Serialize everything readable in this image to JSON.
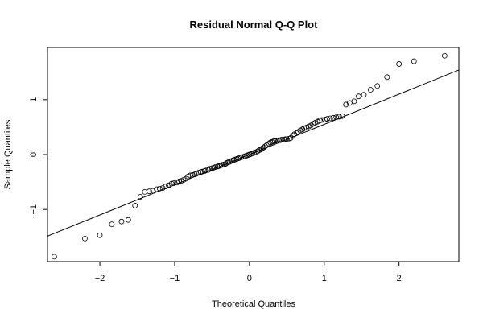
{
  "chart_data": {
    "type": "scatter",
    "title": "Residual Normal Q-Q Plot",
    "xlabel": "Theoretical Quantiles",
    "ylabel": "Sample Quantiles",
    "xlim": [
      -2.7,
      2.8
    ],
    "ylim": [
      -1.95,
      1.95
    ],
    "x_ticks": [
      -2,
      -1,
      0,
      1,
      2
    ],
    "x_tick_labels": [
      "−2",
      "−1",
      "0",
      "1",
      "2"
    ],
    "y_ticks": [
      -1,
      0,
      1
    ],
    "y_tick_labels": [
      "−1",
      "0",
      "1"
    ],
    "grid": false,
    "reference_line": {
      "intercept": 0.0,
      "slope": 0.55
    },
    "series": [
      {
        "points": [
          [
            -2.61,
            -1.86
          ],
          [
            -2.2,
            -1.53
          ],
          [
            -2.0,
            -1.47
          ],
          [
            -1.84,
            -1.27
          ],
          [
            -1.71,
            -1.22
          ],
          [
            -1.62,
            -1.19
          ],
          [
            -1.53,
            -0.93
          ],
          [
            -1.46,
            -0.77
          ],
          [
            -1.4,
            -0.68
          ],
          [
            -1.34,
            -0.67
          ],
          [
            -1.29,
            -0.66
          ],
          [
            -1.24,
            -0.63
          ],
          [
            -1.2,
            -0.62
          ],
          [
            -1.16,
            -0.61
          ],
          [
            -1.12,
            -0.58
          ],
          [
            -1.08,
            -0.56
          ],
          [
            -1.04,
            -0.53
          ],
          [
            -1.01,
            -0.52
          ],
          [
            -0.97,
            -0.51
          ],
          [
            -0.94,
            -0.49
          ],
          [
            -0.91,
            -0.48
          ],
          [
            -0.88,
            -0.46
          ],
          [
            -0.85,
            -0.44
          ],
          [
            -0.82,
            -0.4
          ],
          [
            -0.79,
            -0.38
          ],
          [
            -0.76,
            -0.37
          ],
          [
            -0.73,
            -0.36
          ],
          [
            -0.71,
            -0.35
          ],
          [
            -0.68,
            -0.33
          ],
          [
            -0.65,
            -0.32
          ],
          [
            -0.63,
            -0.31
          ],
          [
            -0.6,
            -0.3
          ],
          [
            -0.58,
            -0.29
          ],
          [
            -0.55,
            -0.28
          ],
          [
            -0.53,
            -0.26
          ],
          [
            -0.5,
            -0.25
          ],
          [
            -0.48,
            -0.24
          ],
          [
            -0.46,
            -0.23
          ],
          [
            -0.43,
            -0.22
          ],
          [
            -0.41,
            -0.21
          ],
          [
            -0.39,
            -0.2
          ],
          [
            -0.37,
            -0.19
          ],
          [
            -0.34,
            -0.18
          ],
          [
            -0.32,
            -0.17
          ],
          [
            -0.3,
            -0.15
          ],
          [
            -0.28,
            -0.14
          ],
          [
            -0.26,
            -0.13
          ],
          [
            -0.23,
            -0.11
          ],
          [
            -0.21,
            -0.1
          ],
          [
            -0.19,
            -0.09
          ],
          [
            -0.17,
            -0.08
          ],
          [
            -0.15,
            -0.07
          ],
          [
            -0.13,
            -0.06
          ],
          [
            -0.11,
            -0.05
          ],
          [
            -0.08,
            -0.04
          ],
          [
            -0.06,
            -0.03
          ],
          [
            -0.04,
            -0.02
          ],
          [
            -0.02,
            -0.01
          ],
          [
            0.0,
            0.0
          ],
          [
            0.02,
            0.01
          ],
          [
            0.04,
            0.02
          ],
          [
            0.06,
            0.03
          ],
          [
            0.08,
            0.04
          ],
          [
            0.11,
            0.06
          ],
          [
            0.13,
            0.08
          ],
          [
            0.15,
            0.09
          ],
          [
            0.17,
            0.11
          ],
          [
            0.19,
            0.13
          ],
          [
            0.21,
            0.15
          ],
          [
            0.23,
            0.17
          ],
          [
            0.26,
            0.2
          ],
          [
            0.28,
            0.22
          ],
          [
            0.3,
            0.23
          ],
          [
            0.32,
            0.24
          ],
          [
            0.34,
            0.25
          ],
          [
            0.37,
            0.25
          ],
          [
            0.39,
            0.26
          ],
          [
            0.41,
            0.26
          ],
          [
            0.43,
            0.27
          ],
          [
            0.46,
            0.27
          ],
          [
            0.48,
            0.28
          ],
          [
            0.5,
            0.28
          ],
          [
            0.53,
            0.29
          ],
          [
            0.55,
            0.3
          ],
          [
            0.58,
            0.34
          ],
          [
            0.6,
            0.37
          ],
          [
            0.63,
            0.39
          ],
          [
            0.65,
            0.41
          ],
          [
            0.68,
            0.44
          ],
          [
            0.71,
            0.46
          ],
          [
            0.73,
            0.48
          ],
          [
            0.76,
            0.49
          ],
          [
            0.79,
            0.51
          ],
          [
            0.82,
            0.53
          ],
          [
            0.85,
            0.56
          ],
          [
            0.88,
            0.58
          ],
          [
            0.91,
            0.6
          ],
          [
            0.94,
            0.62
          ],
          [
            0.97,
            0.63
          ],
          [
            1.01,
            0.64
          ],
          [
            1.04,
            0.65
          ],
          [
            1.08,
            0.66
          ],
          [
            1.12,
            0.67
          ],
          [
            1.16,
            0.68
          ],
          [
            1.2,
            0.69
          ],
          [
            1.24,
            0.7
          ],
          [
            1.29,
            0.91
          ],
          [
            1.34,
            0.94
          ],
          [
            1.4,
            0.97
          ],
          [
            1.46,
            1.06
          ],
          [
            1.53,
            1.09
          ],
          [
            1.62,
            1.18
          ],
          [
            1.71,
            1.25
          ],
          [
            1.84,
            1.41
          ],
          [
            2.0,
            1.65
          ],
          [
            2.2,
            1.7
          ],
          [
            2.61,
            1.8
          ]
        ]
      }
    ]
  }
}
